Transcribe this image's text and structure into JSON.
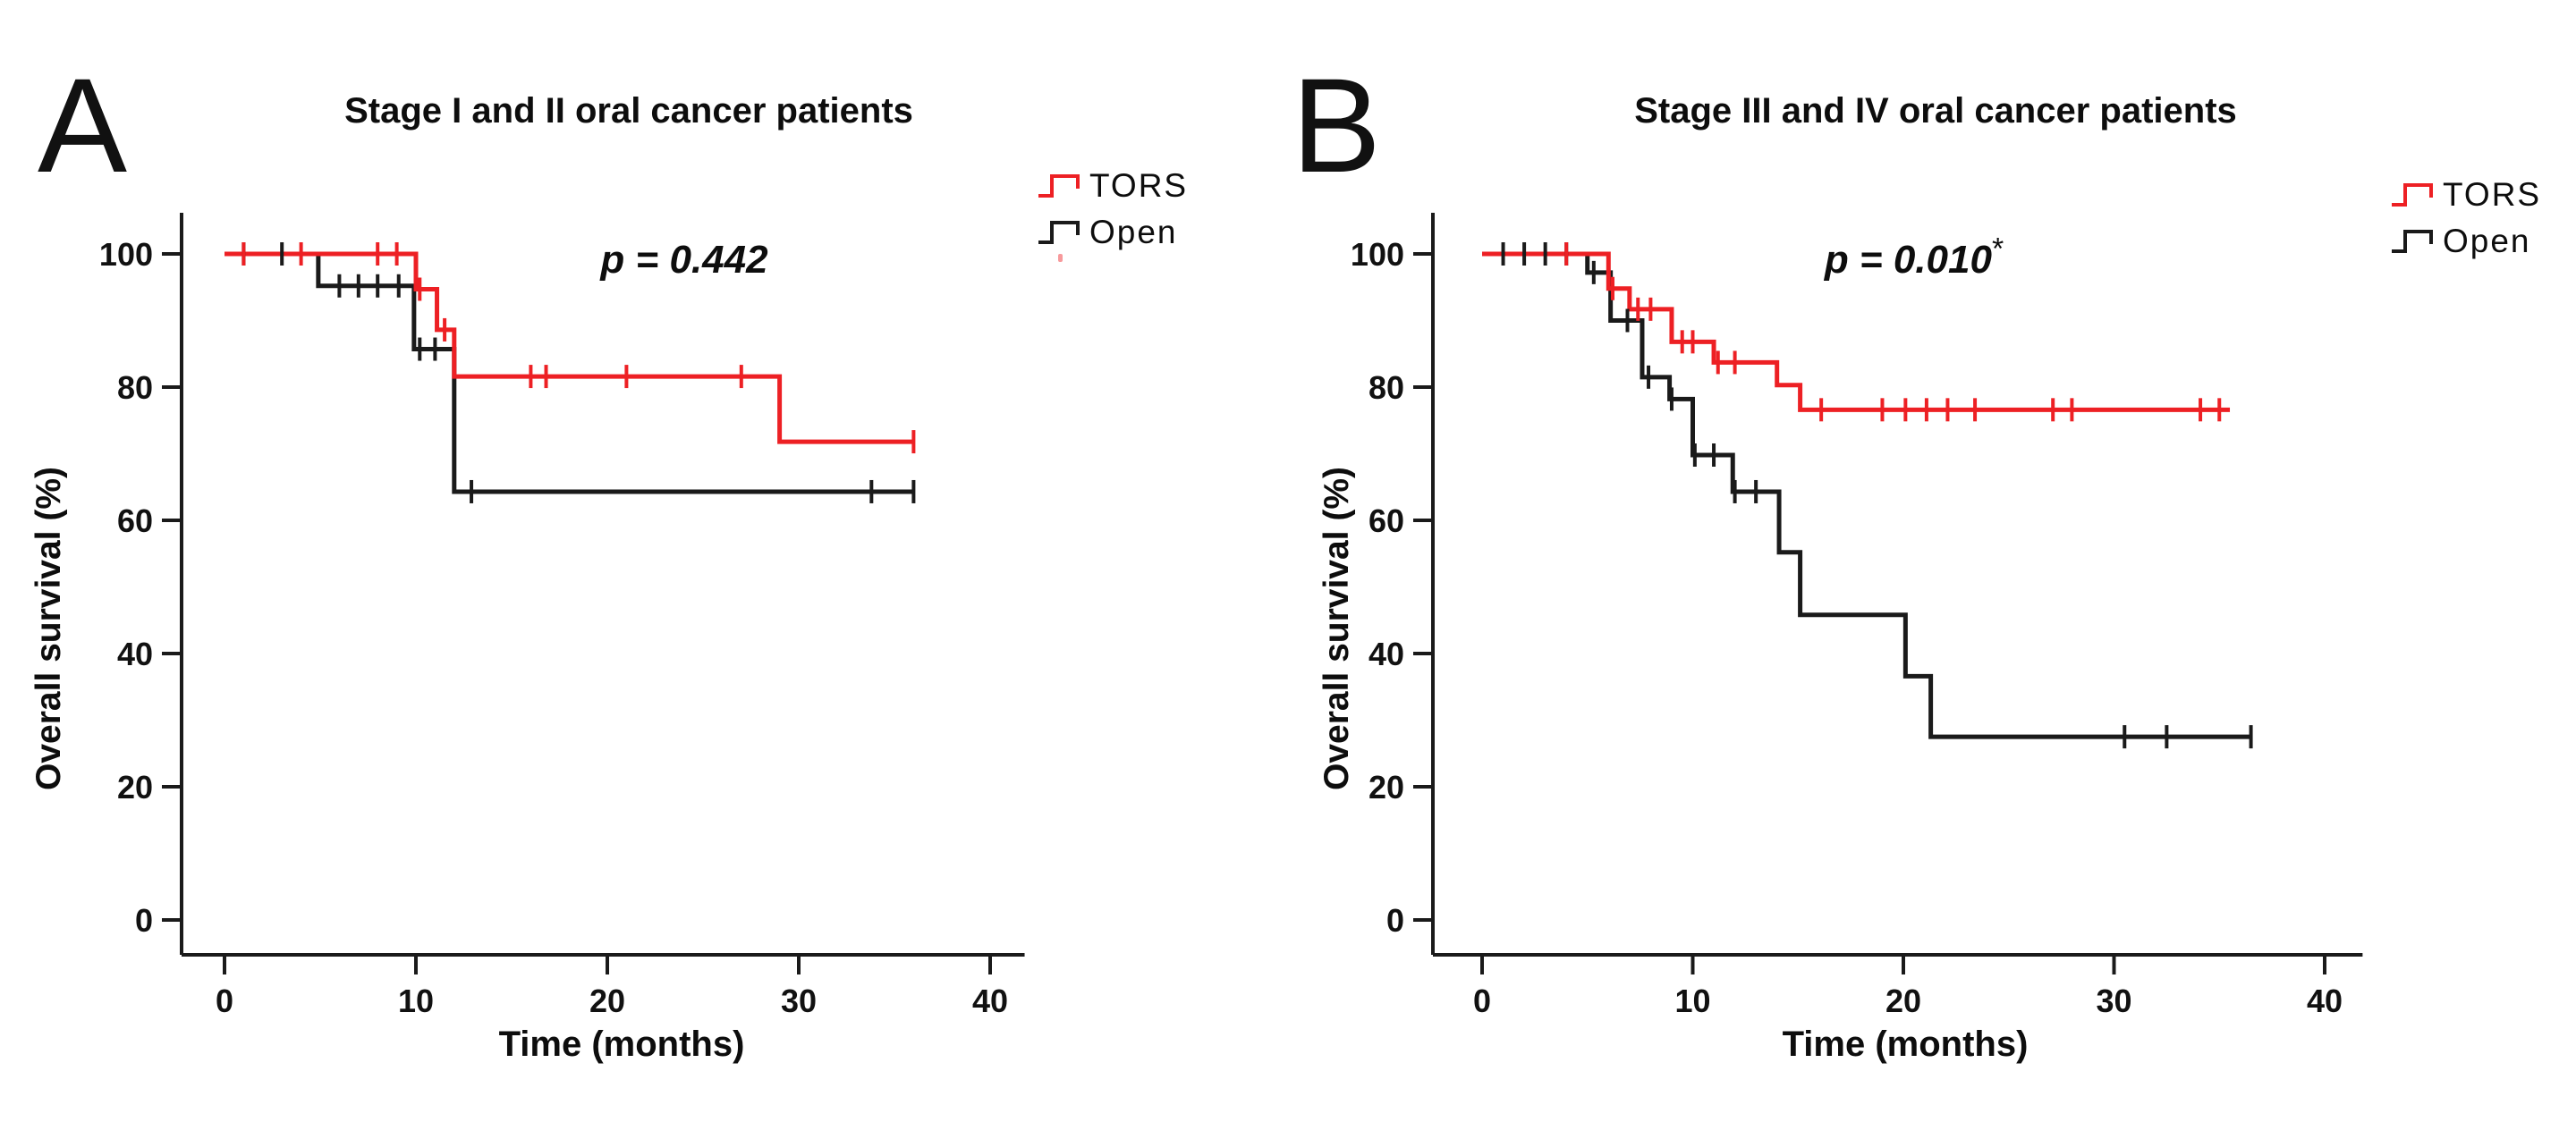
{
  "figure": {
    "background": "#ffffff",
    "accent_red": "#ed2024",
    "line_black": "#1a1a1a",
    "panel_a": {
      "label": "A",
      "title": "Stage I and II oral cancer patients",
      "p_value": "p = 0.442",
      "ylabel": "Overall survival (%)",
      "xlabel": "Time (months)",
      "legend": [
        {
          "label": "TORS",
          "color": "#ed2024",
          "marker": "step-line"
        },
        {
          "label": "Open",
          "color": "#1a1a1a",
          "marker": "step-line"
        }
      ]
    },
    "panel_b": {
      "label": "B",
      "title": "Stage III and IV oral cancer patients",
      "p_value": "p = 0.010",
      "significance_marker": "*",
      "ylabel": "Overall survival (%)",
      "xlabel": "Time (months)",
      "legend": [
        {
          "label": "TORS",
          "color": "#ed2024",
          "marker": "step-line"
        },
        {
          "label": "Open",
          "color": "#1a1a1a",
          "marker": "step-line"
        }
      ]
    }
  },
  "chart_data": [
    {
      "type": "line",
      "subtype": "kaplan-meier-step",
      "panel": "A",
      "title": "Stage I and II oral cancer patients",
      "xlabel": "Time (months)",
      "ylabel": "Overall survival (%)",
      "xlim": [
        0,
        40
      ],
      "xticks": [
        0,
        10,
        20,
        30,
        40
      ],
      "ylim": [
        0,
        100
      ],
      "yticks": [
        100,
        80,
        60,
        40,
        20,
        0
      ],
      "grid": false,
      "annotation": "p = 0.442",
      "legend_position": "outside-top-right",
      "series": [
        {
          "name": "TORS",
          "color": "#ed2024",
          "steps": [
            [
              0,
              100
            ],
            [
              10,
              94.7
            ],
            [
              11.1,
              88.6
            ],
            [
              12,
              81.6
            ],
            [
              29,
              71.8
            ],
            [
              36,
              71.8
            ]
          ],
          "censors": [
            [
              1,
              100
            ],
            [
              4,
              100
            ],
            [
              8,
              100
            ],
            [
              9,
              100
            ],
            [
              10.2,
              94.7
            ],
            [
              11.5,
              88.6
            ],
            [
              16,
              81.6
            ],
            [
              16.8,
              81.6
            ],
            [
              21,
              81.6
            ],
            [
              27,
              81.6
            ],
            [
              36,
              71.8
            ]
          ]
        },
        {
          "name": "Open",
          "color": "#1a1a1a",
          "steps": [
            [
              0,
              100
            ],
            [
              4.9,
              95.2
            ],
            [
              9.9,
              85.7
            ],
            [
              12,
              64.3
            ],
            [
              36,
              64.3
            ]
          ],
          "censors": [
            [
              1,
              100
            ],
            [
              3,
              100
            ],
            [
              6,
              95.2
            ],
            [
              7,
              95.2
            ],
            [
              8,
              95.2
            ],
            [
              9.1,
              95.2
            ],
            [
              10.2,
              85.7
            ],
            [
              11,
              85.7
            ],
            [
              12.9,
              64.3
            ],
            [
              33.8,
              64.3
            ],
            [
              36,
              64.3
            ]
          ]
        }
      ]
    },
    {
      "type": "line",
      "subtype": "kaplan-meier-step",
      "panel": "B",
      "title": "Stage III and IV oral cancer patients",
      "xlabel": "Time (months)",
      "ylabel": "Overall survival (%)",
      "xlim": [
        0,
        40
      ],
      "xticks": [
        0,
        10,
        20,
        30,
        40
      ],
      "ylim": [
        0,
        100
      ],
      "yticks": [
        100,
        80,
        60,
        40,
        20,
        0
      ],
      "grid": false,
      "annotation": "p = 0.010 *",
      "legend_position": "outside-top-right",
      "series": [
        {
          "name": "TORS",
          "color": "#ed2024",
          "steps": [
            [
              0,
              100
            ],
            [
              6,
              94.8
            ],
            [
              7,
              91.7
            ],
            [
              9,
              86.8
            ],
            [
              11,
              83.7
            ],
            [
              14,
              80.3
            ],
            [
              15.1,
              76.6
            ],
            [
              35.5,
              76.6
            ]
          ],
          "censors": [
            [
              4,
              100
            ],
            [
              6.2,
              94.8
            ],
            [
              7.4,
              91.7
            ],
            [
              8,
              91.7
            ],
            [
              9.5,
              86.8
            ],
            [
              10,
              86.8
            ],
            [
              11.2,
              83.7
            ],
            [
              12,
              83.7
            ],
            [
              16.1,
              76.6
            ],
            [
              19,
              76.6
            ],
            [
              20.1,
              76.6
            ],
            [
              21.1,
              76.6
            ],
            [
              22.1,
              76.6
            ],
            [
              23.4,
              76.6
            ],
            [
              27.1,
              76.6
            ],
            [
              28,
              76.6
            ],
            [
              34.1,
              76.6
            ],
            [
              35,
              76.6
            ]
          ]
        },
        {
          "name": "Open",
          "color": "#1a1a1a",
          "steps": [
            [
              0,
              100
            ],
            [
              5,
              97.2
            ],
            [
              6.1,
              90
            ],
            [
              7.6,
              81.5
            ],
            [
              8.9,
              78.2
            ],
            [
              10,
              69.8
            ],
            [
              11.9,
              64.3
            ],
            [
              14.1,
              55.2
            ],
            [
              15.1,
              45.8
            ],
            [
              20.1,
              36.6
            ],
            [
              21.3,
              27.5
            ],
            [
              36.5,
              27.5
            ]
          ],
          "censors": [
            [
              1,
              100
            ],
            [
              2,
              100
            ],
            [
              3,
              100
            ],
            [
              4,
              100
            ],
            [
              5.3,
              97.2
            ],
            [
              6.9,
              90
            ],
            [
              7.9,
              81.5
            ],
            [
              9,
              78.2
            ],
            [
              10.1,
              69.8
            ],
            [
              11,
              69.8
            ],
            [
              12,
              64.3
            ],
            [
              13,
              64.3
            ],
            [
              30.5,
              27.5
            ],
            [
              32.5,
              27.5
            ],
            [
              36.5,
              27.5
            ]
          ]
        }
      ]
    }
  ]
}
